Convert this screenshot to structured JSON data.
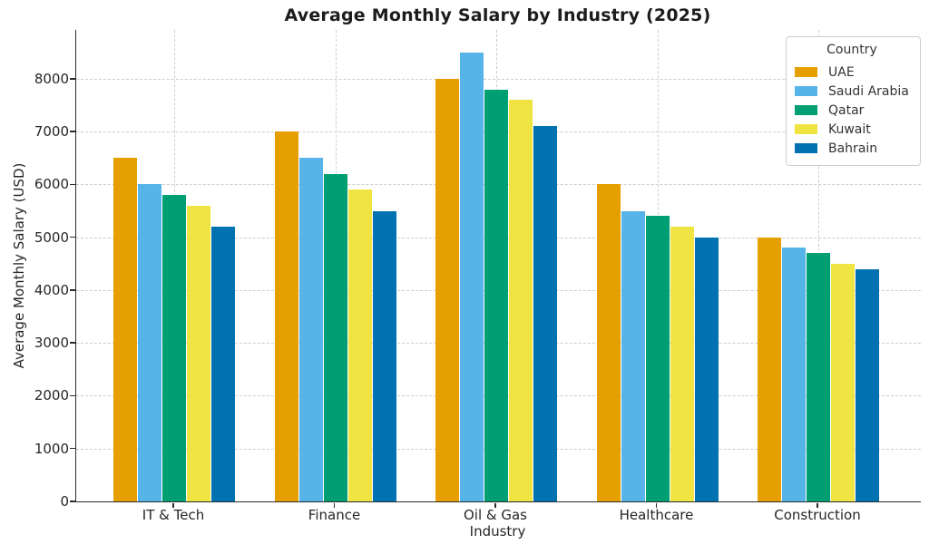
{
  "chart_data": {
    "type": "bar",
    "title": "Average Monthly Salary by Industry (2025)",
    "xlabel": "Industry",
    "ylabel": "Average Monthly Salary (USD)",
    "legend_title": "Country",
    "legend_position": "upper right",
    "grid": {
      "shown": true,
      "style": "dashed",
      "color": "#cdcdcd",
      "axes": "both"
    },
    "categories": [
      "IT & Tech",
      "Finance",
      "Oil & Gas",
      "Healthcare",
      "Construction"
    ],
    "series": [
      {
        "name": "UAE",
        "color": "#E69F00",
        "values": [
          6500,
          7000,
          8000,
          6000,
          5000
        ]
      },
      {
        "name": "Saudi Arabia",
        "color": "#56B4E9",
        "values": [
          6000,
          6500,
          8500,
          5500,
          4800
        ]
      },
      {
        "name": "Qatar",
        "color": "#009E73",
        "values": [
          5800,
          6200,
          7800,
          5400,
          4700
        ]
      },
      {
        "name": "Kuwait",
        "color": "#F0E442",
        "values": [
          5600,
          5900,
          7600,
          5200,
          4500
        ]
      },
      {
        "name": "Bahrain",
        "color": "#0072B2",
        "values": [
          5200,
          5500,
          7100,
          5000,
          4400
        ]
      }
    ],
    "yticks": [
      0,
      1000,
      2000,
      3000,
      4000,
      5000,
      6000,
      7000,
      8000
    ],
    "ylim": [
      0,
      8925
    ],
    "axis_color": "#2b2b2b",
    "background_color": "#ffffff"
  }
}
